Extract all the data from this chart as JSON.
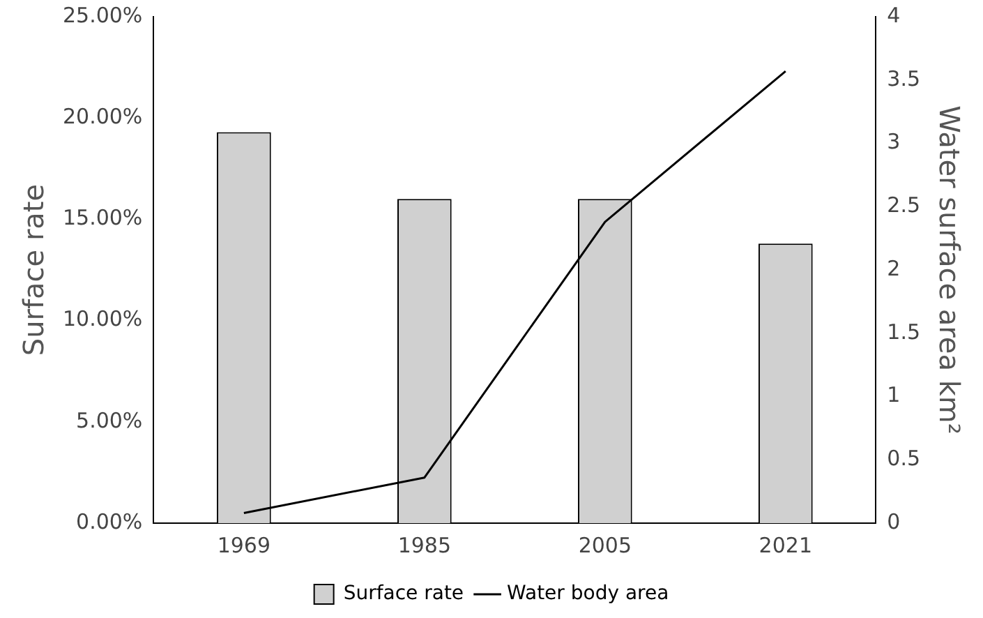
{
  "chart_data": {
    "type": "bar",
    "categories": [
      "1969",
      "1985",
      "2005",
      "2021"
    ],
    "ylabel": "Surface rate",
    "y2label": "Water surface area km²",
    "series": [
      {
        "name": "Surface rate",
        "color": "#d0d0d0",
        "values": [
          19.3,
          16.0,
          16.0,
          13.8
        ]
      },
      {
        "name": "Water body area",
        "type": "line",
        "axis": "y2",
        "color": "#000000",
        "values": [
          0.08,
          0.36,
          2.38,
          3.57
        ]
      }
    ],
    "ylim": [
      0,
      25
    ],
    "yticks": [
      {
        "value": 0,
        "label": "0.00%"
      },
      {
        "value": 5,
        "label": "5.00%"
      },
      {
        "value": 10,
        "label": "10.00%"
      },
      {
        "value": 15,
        "label": "15.00%"
      },
      {
        "value": 20,
        "label": "20.00%"
      },
      {
        "value": 25,
        "label": "25.00%"
      }
    ],
    "y2lim": [
      0,
      4
    ],
    "y2ticks": [
      0,
      0.5,
      1,
      1.5,
      2,
      2.5,
      3,
      3.5,
      4
    ],
    "grid": false,
    "legend": "bottom",
    "marker": "none",
    "line_style": "solid"
  }
}
